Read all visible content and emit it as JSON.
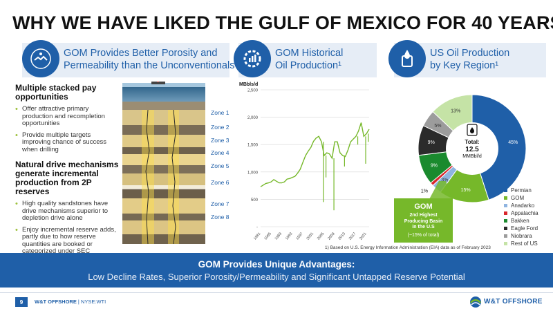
{
  "title": "WHY WE HAVE LIKED THE GULF OF MEXICO FOR 40 YEARS",
  "headers": [
    {
      "icon": "handshake-icon",
      "line1": "GOM Provides Better Porosity and",
      "line2": "Permeability than the Unconventionals"
    },
    {
      "icon": "gear-chart-icon",
      "line1": "GOM Historical",
      "line2": "Oil Production¹"
    },
    {
      "icon": "oil-drop-icon",
      "line1": "US Oil Production",
      "line2": "by Key Region¹"
    }
  ],
  "left": {
    "heading1": "Multiple stacked pay opportunities",
    "bullets1": [
      "Offer attractive primary production and recompletion opportunities",
      "Provide multiple targets improving chance of success when drilling"
    ],
    "heading2": "Natural drive mechanisms generate incremental production from 2P reserves",
    "bullets2": [
      "High quality sandstones have drive mechanisms superior to depletion drive alone",
      "Enjoy incremental reserve adds, partly due to how reserve quantities are booked or categorized under SEC guidelines"
    ]
  },
  "zones": [
    "Zone 1",
    "Zone 2",
    "Zone 3",
    "Zone 4",
    "Zone 5",
    "Zone 6",
    "Zone 7",
    "Zone 8"
  ],
  "chart_data": [
    {
      "type": "line",
      "ylabel": "MBbls/d",
      "ylim": [
        0,
        2500
      ],
      "yticks": [
        "2,500",
        "2,000",
        "1,500",
        "1,000",
        "500",
        "-"
      ],
      "yticks_values": [
        2500,
        2000,
        1500,
        1000,
        500,
        0
      ],
      "xticks": [
        "1981",
        "1985",
        "1989",
        "1993",
        "1997",
        "2001",
        "2005",
        "2009",
        "2013",
        "2017",
        "2021"
      ],
      "x": [
        1981,
        1982,
        1983,
        1984,
        1985,
        1986,
        1987,
        1988,
        1989,
        1990,
        1991,
        1992,
        1993,
        1994,
        1995,
        1996,
        1997,
        1998,
        1999,
        2000,
        2001,
        2002,
        2003,
        2004,
        2005,
        2006,
        2007,
        2008,
        2009,
        2010,
        2011,
        2012,
        2013,
        2014,
        2015,
        2016,
        2017,
        2018,
        2019,
        2020,
        2021,
        2022
      ],
      "series": [
        {
          "color": "#76b82a",
          "values": [
            730,
            760,
            790,
            800,
            820,
            860,
            830,
            800,
            800,
            820,
            870,
            880,
            900,
            920,
            980,
            1050,
            1180,
            1300,
            1380,
            1450,
            1560,
            1620,
            1650,
            1550,
            1300,
            1350,
            1330,
            1250,
            1550,
            1550,
            1350,
            1300,
            1280,
            1400,
            1550,
            1600,
            1650,
            1750,
            1900,
            1650,
            1700,
            1780
          ]
        }
      ],
      "dips": [
        {
          "x": 2004.7,
          "value": 450
        },
        {
          "x": 2005.7,
          "value": 900
        },
        {
          "x": 2008.7,
          "value": 300
        },
        {
          "x": 2012.7,
          "value": 1100
        },
        {
          "x": 2017.7,
          "value": 1500
        },
        {
          "x": 2020.7,
          "value": 1150
        },
        {
          "x": 2021.7,
          "value": 1550
        }
      ]
    },
    {
      "type": "pie",
      "center_label": {
        "line1": "Total:",
        "line2": "12.5",
        "line3": "MMBbl/d"
      },
      "slices": [
        {
          "name": "Permian",
          "value": 45,
          "label": "45%",
          "color": "#1f5fa8"
        },
        {
          "name": "GOM",
          "value": 15,
          "label": "15%",
          "color": "#76b82a"
        },
        {
          "name": "Anadarko",
          "value": 3,
          "label": "3%",
          "color": "#8fb4e0"
        },
        {
          "name": "Appalachia",
          "value": 1,
          "label": "1%",
          "color": "#d9262c"
        },
        {
          "name": "Bakken",
          "value": 9,
          "label": "9%",
          "color": "#1a8a2e"
        },
        {
          "name": "Eagle Ford",
          "value": 9,
          "label": "9%",
          "color": "#2b2b2b"
        },
        {
          "name": "Niobrara",
          "value": 5,
          "label": "5%",
          "color": "#9c9c9c"
        },
        {
          "name": "Rest of US",
          "value": 13,
          "label": "13%",
          "color": "#c5e3a6"
        }
      ]
    }
  ],
  "gom_callout": {
    "title": "GOM",
    "sub1": "2nd Highest",
    "sub2": "Producing Basin",
    "sub3": "in the U.S",
    "note": "(~15% of total)"
  },
  "footnote": "1) Based on U.S. Energy Information Administration (EIA) data as of February 2023",
  "banner": {
    "line1": "GOM Provides Unique Advantages:",
    "line2": "Low Decline Rates, Superior Porosity/Permeability and Significant Untapped Reserve Potential"
  },
  "footer": {
    "page": "9",
    "company": "W&T OFFSHORE",
    "ticker": "| NYSE:WTI",
    "logo": "W&T OFFSHORE"
  }
}
